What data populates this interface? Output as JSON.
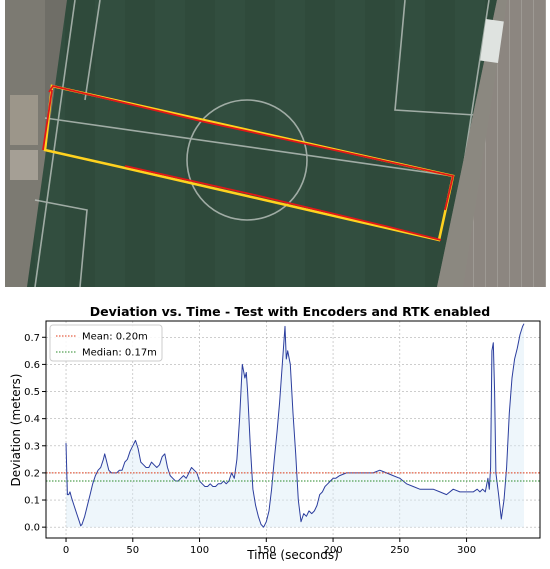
{
  "aerial_photo": {
    "description_icon": "soccer-field-aerial-image",
    "colors": {
      "path_planned": "#ffd21f",
      "path_actual": "#e01818"
    }
  },
  "chart_data": {
    "type": "line",
    "title": "Deviation vs. Time - Test with Encoders and RTK enabled",
    "xlabel": "Time (seconds)",
    "ylabel": "Deviation (meters)",
    "xlim": [
      -15,
      355
    ],
    "ylim": [
      -0.04,
      0.76
    ],
    "xticks": [
      0,
      50,
      100,
      150,
      200,
      250,
      300
    ],
    "yticks": [
      0.0,
      0.1,
      0.2,
      0.3,
      0.4,
      0.5,
      0.6,
      0.7
    ],
    "grid": true,
    "legend_position": "top-left",
    "series": [
      {
        "name": "",
        "color": "#2c3e9e",
        "x": [
          0,
          1,
          2,
          3,
          4,
          6,
          8,
          10,
          11,
          12,
          14,
          16,
          18,
          20,
          22,
          24,
          26,
          28,
          29,
          30,
          32,
          34,
          36,
          38,
          40,
          42,
          44,
          46,
          48,
          50,
          52,
          54,
          56,
          58,
          60,
          62,
          64,
          66,
          68,
          70,
          72,
          74,
          76,
          78,
          80,
          82,
          84,
          86,
          88,
          90,
          92,
          94,
          96,
          98,
          100,
          102,
          104,
          106,
          108,
          110,
          112,
          114,
          116,
          118,
          120,
          122,
          124,
          126,
          128,
          130,
          132,
          134,
          135,
          136,
          138,
          140,
          142,
          144,
          146,
          148,
          150,
          152,
          154,
          156,
          158,
          160,
          162,
          164,
          165,
          166,
          168,
          170,
          172,
          174,
          176,
          178,
          180,
          182,
          184,
          186,
          188,
          190,
          192,
          194,
          196,
          198,
          200,
          202,
          205,
          210,
          215,
          220,
          225,
          230,
          235,
          240,
          245,
          250,
          255,
          260,
          265,
          270,
          275,
          280,
          285,
          290,
          295,
          300,
          305,
          308,
          310,
          312,
          314,
          316,
          317,
          318,
          319,
          320,
          321,
          322,
          324,
          326,
          328,
          330,
          332,
          334,
          336,
          338,
          340,
          342,
          343
        ],
        "y": [
          0.31,
          0.12,
          0.12,
          0.13,
          0.11,
          0.08,
          0.05,
          0.02,
          0.005,
          0.01,
          0.04,
          0.08,
          0.12,
          0.16,
          0.19,
          0.21,
          0.22,
          0.25,
          0.27,
          0.25,
          0.21,
          0.2,
          0.2,
          0.2,
          0.21,
          0.21,
          0.24,
          0.25,
          0.28,
          0.3,
          0.32,
          0.29,
          0.24,
          0.23,
          0.22,
          0.22,
          0.24,
          0.23,
          0.22,
          0.23,
          0.26,
          0.27,
          0.22,
          0.19,
          0.18,
          0.17,
          0.17,
          0.18,
          0.19,
          0.18,
          0.2,
          0.22,
          0.21,
          0.2,
          0.17,
          0.16,
          0.15,
          0.15,
          0.16,
          0.15,
          0.15,
          0.16,
          0.16,
          0.17,
          0.16,
          0.17,
          0.2,
          0.18,
          0.25,
          0.4,
          0.6,
          0.55,
          0.57,
          0.5,
          0.3,
          0.14,
          0.08,
          0.04,
          0.01,
          0.0,
          0.02,
          0.06,
          0.14,
          0.25,
          0.35,
          0.46,
          0.6,
          0.74,
          0.62,
          0.65,
          0.6,
          0.42,
          0.27,
          0.1,
          0.02,
          0.05,
          0.04,
          0.06,
          0.05,
          0.06,
          0.08,
          0.12,
          0.13,
          0.15,
          0.16,
          0.17,
          0.18,
          0.18,
          0.19,
          0.2,
          0.2,
          0.2,
          0.2,
          0.2,
          0.21,
          0.2,
          0.19,
          0.18,
          0.16,
          0.15,
          0.14,
          0.14,
          0.14,
          0.13,
          0.12,
          0.14,
          0.13,
          0.13,
          0.13,
          0.14,
          0.13,
          0.14,
          0.13,
          0.18,
          0.14,
          0.22,
          0.65,
          0.68,
          0.5,
          0.2,
          0.12,
          0.03,
          0.1,
          0.22,
          0.42,
          0.55,
          0.62,
          0.66,
          0.71,
          0.74,
          0.75
        ]
      }
    ],
    "reference_lines": [
      {
        "name": "Mean: 0.20m",
        "value": 0.2,
        "color": "#e03a17",
        "style": "dotted"
      },
      {
        "name": "Median: 0.17m",
        "value": 0.17,
        "color": "#2a8a2a",
        "style": "dotted"
      }
    ]
  }
}
